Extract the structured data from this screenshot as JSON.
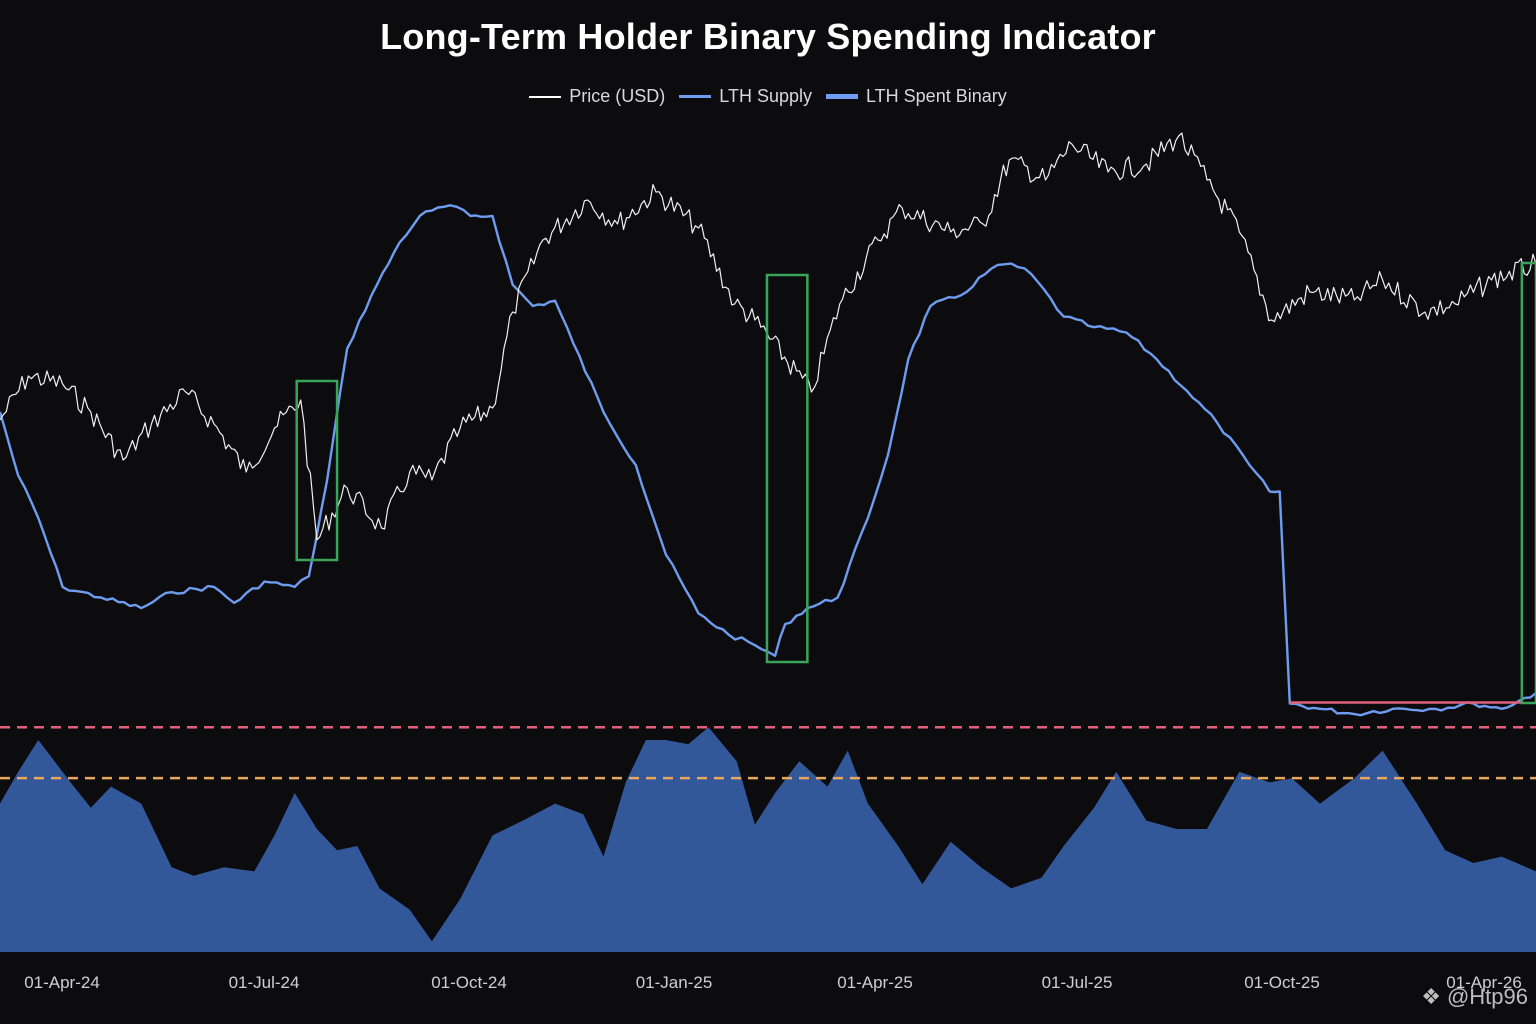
{
  "chart_data": {
    "type": "line",
    "title": "Long-Term Holder Binary Spending Indicator",
    "legend_position": "top-center",
    "x_ticks": [
      "01-Apr-24",
      "01-Jul-24",
      "01-Oct-24",
      "01-Jan-25",
      "01-Apr-25",
      "01-Jul-25",
      "01-Oct-25",
      "01-Apr-26"
    ],
    "x_range": [
      "2024-03-01",
      "2026-04-01"
    ],
    "grid": false,
    "y_axis_labels_visible": false,
    "series": [
      {
        "name": "Price (USD)",
        "color": "#f0f0f0",
        "style": "thin-line",
        "relative_scale": [
          0,
          100
        ],
        "points": [
          [
            "2024-03-01",
            35
          ],
          [
            "2024-03-15",
            46
          ],
          [
            "2024-04-01",
            44
          ],
          [
            "2024-04-15",
            37
          ],
          [
            "2024-05-01",
            25
          ],
          [
            "2024-05-15",
            34
          ],
          [
            "2024-06-01",
            42
          ],
          [
            "2024-06-15",
            34
          ],
          [
            "2024-07-01",
            22
          ],
          [
            "2024-07-15",
            33
          ],
          [
            "2024-07-28",
            40
          ],
          [
            "2024-08-05",
            5
          ],
          [
            "2024-08-20",
            18
          ],
          [
            "2024-09-06",
            8
          ],
          [
            "2024-09-20",
            22
          ],
          [
            "2024-10-01",
            20
          ],
          [
            "2024-10-15",
            33
          ],
          [
            "2024-10-31",
            38
          ],
          [
            "2024-11-10",
            62
          ],
          [
            "2024-11-25",
            80
          ],
          [
            "2024-12-17",
            90
          ],
          [
            "2025-01-01",
            84
          ],
          [
            "2025-01-20",
            92
          ],
          [
            "2025-02-10",
            83
          ],
          [
            "2025-02-28",
            64
          ],
          [
            "2025-03-10",
            60
          ],
          [
            "2025-04-07",
            42
          ],
          [
            "2025-04-21",
            64
          ],
          [
            "2025-05-10",
            80
          ],
          [
            "2025-05-22",
            88
          ],
          [
            "2025-06-15",
            82
          ],
          [
            "2025-07-01",
            84
          ],
          [
            "2025-07-14",
            100
          ],
          [
            "2025-08-01",
            95
          ],
          [
            "2025-08-14",
            104
          ],
          [
            "2025-09-01",
            97
          ],
          [
            "2025-09-20",
            99
          ],
          [
            "2025-10-06",
            106
          ],
          [
            "2025-10-20",
            95
          ],
          [
            "2025-11-05",
            82
          ],
          [
            "2025-11-21",
            60
          ],
          [
            "2025-12-10",
            67
          ],
          [
            "2026-01-01",
            65
          ],
          [
            "2026-01-15",
            70
          ],
          [
            "2026-02-05",
            62
          ],
          [
            "2026-02-20",
            64
          ],
          [
            "2026-03-10",
            70
          ],
          [
            "2026-04-01",
            74
          ]
        ]
      },
      {
        "name": "LTH Supply",
        "color": "#6e9cf0",
        "style": "line",
        "relative_scale": [
          0,
          100
        ],
        "points": [
          [
            "2024-03-01",
            60
          ],
          [
            "2024-03-10",
            48
          ],
          [
            "2024-03-20",
            40
          ],
          [
            "2024-04-01",
            27
          ],
          [
            "2024-04-20",
            25
          ],
          [
            "2024-05-10",
            23
          ],
          [
            "2024-05-25",
            26
          ],
          [
            "2024-06-15",
            27
          ],
          [
            "2024-06-25",
            24
          ],
          [
            "2024-07-10",
            28
          ],
          [
            "2024-07-25",
            27
          ],
          [
            "2024-08-01",
            29
          ],
          [
            "2024-08-10",
            47
          ],
          [
            "2024-08-20",
            72
          ],
          [
            "2024-09-01",
            82
          ],
          [
            "2024-09-15",
            92
          ],
          [
            "2024-09-25",
            97
          ],
          [
            "2024-10-01",
            98
          ],
          [
            "2024-10-10",
            99
          ],
          [
            "2024-10-20",
            97
          ],
          [
            "2024-10-31",
            97
          ],
          [
            "2024-11-10",
            84
          ],
          [
            "2024-11-20",
            80
          ],
          [
            "2024-12-01",
            81
          ],
          [
            "2024-12-10",
            73
          ],
          [
            "2024-12-25",
            60
          ],
          [
            "2025-01-10",
            50
          ],
          [
            "2025-01-25",
            33
          ],
          [
            "2025-02-10",
            22
          ],
          [
            "2025-02-25",
            18
          ],
          [
            "2025-03-10",
            16
          ],
          [
            "2025-03-20",
            14
          ],
          [
            "2025-03-25",
            20
          ],
          [
            "2025-04-05",
            23
          ],
          [
            "2025-04-20",
            25
          ],
          [
            "2025-05-05",
            40
          ],
          [
            "2025-05-15",
            52
          ],
          [
            "2025-05-25",
            70
          ],
          [
            "2025-06-05",
            80
          ],
          [
            "2025-06-20",
            82
          ],
          [
            "2025-07-05",
            87
          ],
          [
            "2025-07-15",
            88
          ],
          [
            "2025-07-25",
            86
          ],
          [
            "2025-08-10",
            78
          ],
          [
            "2025-08-25",
            76
          ],
          [
            "2025-09-10",
            75
          ],
          [
            "2025-09-25",
            70
          ],
          [
            "2025-10-10",
            64
          ],
          [
            "2025-10-25",
            58
          ],
          [
            "2025-11-10",
            50
          ],
          [
            "2025-11-20",
            45
          ],
          [
            "2025-11-25",
            45
          ],
          [
            "2025-11-30",
            5
          ],
          [
            "2025-12-15",
            4
          ],
          [
            "2026-01-01",
            3
          ],
          [
            "2026-01-20",
            4
          ],
          [
            "2026-02-10",
            4
          ],
          [
            "2026-03-01",
            5
          ],
          [
            "2026-03-15",
            4
          ],
          [
            "2026-04-01",
            7
          ]
        ]
      },
      {
        "name": "LTH Spent Binary",
        "color": "#33589a",
        "style": "filled-area",
        "relative_scale": [
          0,
          100
        ],
        "points": [
          [
            "2024-03-01",
            70
          ],
          [
            "2024-03-10",
            85
          ],
          [
            "2024-03-20",
            100
          ],
          [
            "2024-04-05",
            80
          ],
          [
            "2024-04-15",
            68
          ],
          [
            "2024-04-25",
            78
          ],
          [
            "2024-05-10",
            70
          ],
          [
            "2024-05-25",
            40
          ],
          [
            "2024-06-05",
            36
          ],
          [
            "2024-06-20",
            40
          ],
          [
            "2024-07-05",
            38
          ],
          [
            "2024-07-15",
            55
          ],
          [
            "2024-07-25",
            75
          ],
          [
            "2024-08-05",
            58
          ],
          [
            "2024-08-15",
            48
          ],
          [
            "2024-08-25",
            50
          ],
          [
            "2024-09-05",
            30
          ],
          [
            "2024-09-20",
            20
          ],
          [
            "2024-10-01",
            5
          ],
          [
            "2024-10-15",
            25
          ],
          [
            "2024-10-31",
            55
          ],
          [
            "2024-11-15",
            62
          ],
          [
            "2024-12-01",
            70
          ],
          [
            "2024-12-15",
            65
          ],
          [
            "2024-12-25",
            45
          ],
          [
            "2025-01-05",
            80
          ],
          [
            "2025-01-15",
            100
          ],
          [
            "2025-01-25",
            100
          ],
          [
            "2025-02-05",
            98
          ],
          [
            "2025-02-15",
            106
          ],
          [
            "2025-03-01",
            90
          ],
          [
            "2025-03-10",
            60
          ],
          [
            "2025-03-20",
            75
          ],
          [
            "2025-04-01",
            90
          ],
          [
            "2025-04-15",
            78
          ],
          [
            "2025-04-25",
            95
          ],
          [
            "2025-05-05",
            70
          ],
          [
            "2025-05-20",
            50
          ],
          [
            "2025-06-01",
            32
          ],
          [
            "2025-06-15",
            52
          ],
          [
            "2025-06-30",
            40
          ],
          [
            "2025-07-15",
            30
          ],
          [
            "2025-07-30",
            35
          ],
          [
            "2025-08-10",
            50
          ],
          [
            "2025-08-25",
            68
          ],
          [
            "2025-09-05",
            85
          ],
          [
            "2025-09-20",
            62
          ],
          [
            "2025-10-05",
            58
          ],
          [
            "2025-10-20",
            58
          ],
          [
            "2025-11-05",
            85
          ],
          [
            "2025-11-20",
            80
          ],
          [
            "2025-12-01",
            82
          ],
          [
            "2025-12-15",
            70
          ],
          [
            "2026-01-01",
            82
          ],
          [
            "2026-01-15",
            95
          ],
          [
            "2026-02-01",
            70
          ],
          [
            "2026-02-15",
            48
          ],
          [
            "2026-03-01",
            42
          ],
          [
            "2026-03-15",
            45
          ],
          [
            "2026-04-01",
            38
          ]
        ]
      }
    ],
    "threshold_lines": [
      {
        "color": "#e0607a",
        "style": "dashed",
        "level": 106
      },
      {
        "color": "#eaa65c",
        "style": "dashed",
        "level": 82
      }
    ],
    "highlight_boxes": [
      {
        "color": "#3aa55a",
        "start": "2024-07-26",
        "end": "2024-08-15",
        "y_range": [
          0,
          80
        ]
      },
      {
        "color": "#3aa55a",
        "start": "2025-03-16",
        "end": "2025-04-05",
        "y_range": [
          0,
          100
        ]
      },
      {
        "color": "#3aa55a",
        "start": "2026-03-25",
        "end": "2026-04-01",
        "y_range": [
          0,
          100
        ]
      }
    ],
    "floor_line": {
      "color": "#e0607a",
      "start": "2025-11-30",
      "end": "2026-03-25",
      "level": 5
    }
  },
  "watermark": {
    "text": "@Htp96",
    "icon": "binance-diamond-icon"
  }
}
